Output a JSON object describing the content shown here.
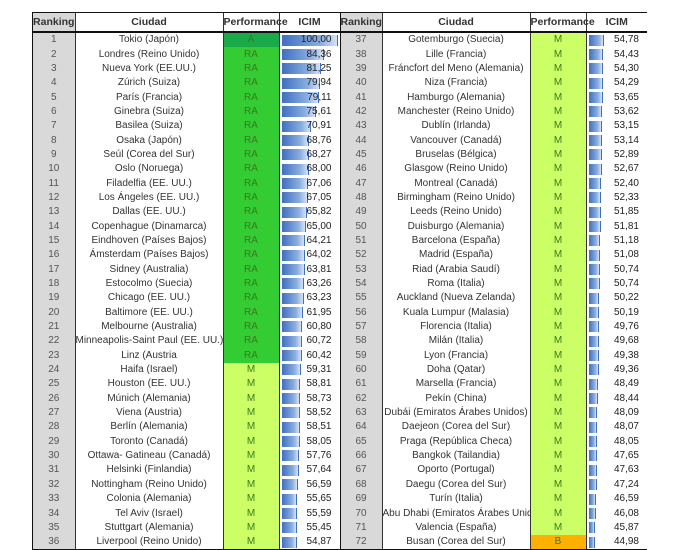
{
  "headers": {
    "ranking": "Ranking",
    "ciudad": "Ciudad",
    "performance": "Performance",
    "icim": "ICIM"
  },
  "colors": {
    "A": "#1aaa4a",
    "RA": "#33cc33",
    "M": "#ccff66",
    "B": "#ffb000",
    "bar": "#3f6fc0"
  },
  "left": [
    {
      "rank": "1",
      "city": "Tokio (Japón)",
      "perf": "A",
      "icim": "100,00"
    },
    {
      "rank": "2",
      "city": "Londres (Reino Unido)",
      "perf": "RA",
      "icim": "84,36"
    },
    {
      "rank": "3",
      "city": "Nueva York (EE.UU.)",
      "perf": "RA",
      "icim": "81,25"
    },
    {
      "rank": "4",
      "city": "Zúrich (Suiza)",
      "perf": "RA",
      "icim": "79,94"
    },
    {
      "rank": "5",
      "city": "París (Francia)",
      "perf": "RA",
      "icim": "79,11"
    },
    {
      "rank": "6",
      "city": "Ginebra (Suiza)",
      "perf": "RA",
      "icim": "75,61"
    },
    {
      "rank": "7",
      "city": "Basilea (Suiza)",
      "perf": "RA",
      "icim": "70,91"
    },
    {
      "rank": "8",
      "city": "Osaka (Japón)",
      "perf": "RA",
      "icim": "68,76"
    },
    {
      "rank": "9",
      "city": "Seúl (Corea del Sur)",
      "perf": "RA",
      "icim": "68,27"
    },
    {
      "rank": "10",
      "city": "Oslo (Noruega)",
      "perf": "RA",
      "icim": "68,00"
    },
    {
      "rank": "11",
      "city": "Filadelfia (EE. UU.)",
      "perf": "RA",
      "icim": "67,06"
    },
    {
      "rank": "12",
      "city": "Los Ángeles (EE. UU.)",
      "perf": "RA",
      "icim": "67,05"
    },
    {
      "rank": "13",
      "city": "Dallas (EE. UU.)",
      "perf": "RA",
      "icim": "65,82"
    },
    {
      "rank": "14",
      "city": "Copenhague (Dinamarca)",
      "perf": "RA",
      "icim": "65,00"
    },
    {
      "rank": "15",
      "city": "Eindhoven (Países Bajos)",
      "perf": "RA",
      "icim": "64,21"
    },
    {
      "rank": "16",
      "city": "Ámsterdam (Países Bajos)",
      "perf": "RA",
      "icim": "64,02"
    },
    {
      "rank": "17",
      "city": "Sidney (Australia)",
      "perf": "RA",
      "icim": "63,81"
    },
    {
      "rank": "18",
      "city": "Estocolmo (Suecia)",
      "perf": "RA",
      "icim": "63,26"
    },
    {
      "rank": "19",
      "city": "Chicago (EE. UU.)",
      "perf": "RA",
      "icim": "63,23"
    },
    {
      "rank": "20",
      "city": "Baltimore (EE. UU.)",
      "perf": "RA",
      "icim": "61,95"
    },
    {
      "rank": "21",
      "city": "Melbourne (Australia)",
      "perf": "RA",
      "icim": "60,80"
    },
    {
      "rank": "22",
      "city": "Minneapolis-Saint Paul (EE. UU.)",
      "perf": "RA",
      "icim": "60,72"
    },
    {
      "rank": "23",
      "city": "Linz (Austria",
      "perf": "RA",
      "icim": "60,42"
    },
    {
      "rank": "24",
      "city": "Haifa (Israel)",
      "perf": "M",
      "icim": "59,31"
    },
    {
      "rank": "25",
      "city": "Houston (EE. UU.)",
      "perf": "M",
      "icim": "58,81"
    },
    {
      "rank": "26",
      "city": "Múnich (Alemania)",
      "perf": "M",
      "icim": "58,73"
    },
    {
      "rank": "27",
      "city": "Viena (Austria)",
      "perf": "M",
      "icim": "58,52"
    },
    {
      "rank": "28",
      "city": "Berlín (Alemania)",
      "perf": "M",
      "icim": "58,51"
    },
    {
      "rank": "29",
      "city": "Toronto (Canadá)",
      "perf": "M",
      "icim": "58,05"
    },
    {
      "rank": "30",
      "city": "Ottawa- Gatineau (Canadá)",
      "perf": "M",
      "icim": "57,76"
    },
    {
      "rank": "31",
      "city": "Helsinki (Finlandia)",
      "perf": "M",
      "icim": "57,64"
    },
    {
      "rank": "32",
      "city": "Nottingham (Reino Unido)",
      "perf": "M",
      "icim": "56,59"
    },
    {
      "rank": "33",
      "city": "Colonia (Alemania)",
      "perf": "M",
      "icim": "55,65"
    },
    {
      "rank": "34",
      "city": "Tel Aviv (Israel)",
      "perf": "M",
      "icim": "55,59"
    },
    {
      "rank": "35",
      "city": "Stuttgart (Alemania)",
      "perf": "M",
      "icim": "55,45"
    },
    {
      "rank": "36",
      "city": "Liverpool (Reino Unido)",
      "perf": "M",
      "icim": "54,87"
    }
  ],
  "right": [
    {
      "rank": "37",
      "city": "Gotemburgo (Suecia)",
      "perf": "M",
      "icim": "54,78"
    },
    {
      "rank": "38",
      "city": "Lille (Francia)",
      "perf": "M",
      "icim": "54,43"
    },
    {
      "rank": "39",
      "city": "Fráncfort del Meno (Alemania)",
      "perf": "M",
      "icim": "54,30"
    },
    {
      "rank": "40",
      "city": "Niza (Francia)",
      "perf": "M",
      "icim": "54,29"
    },
    {
      "rank": "41",
      "city": "Hamburgo (Alemania)",
      "perf": "M",
      "icim": "53,65"
    },
    {
      "rank": "42",
      "city": "Manchester (Reino Unido)",
      "perf": "M",
      "icim": "53,62"
    },
    {
      "rank": "43",
      "city": "Dublín (Irlanda)",
      "perf": "M",
      "icim": "53,15"
    },
    {
      "rank": "44",
      "city": "Vancouver (Canadá)",
      "perf": "M",
      "icim": "53,14"
    },
    {
      "rank": "45",
      "city": "Bruselas (Bélgica)",
      "perf": "M",
      "icim": "52,89"
    },
    {
      "rank": "46",
      "city": "Glasgow (Reino Unido)",
      "perf": "M",
      "icim": "52,67"
    },
    {
      "rank": "47",
      "city": "Montreal (Canadá)",
      "perf": "M",
      "icim": "52,40"
    },
    {
      "rank": "48",
      "city": "Birmingham (Reino Unido)",
      "perf": "M",
      "icim": "52,33"
    },
    {
      "rank": "49",
      "city": "Leeds (Reino Unido)",
      "perf": "M",
      "icim": "51,85"
    },
    {
      "rank": "50",
      "city": "Duisburgo (Alemania)",
      "perf": "M",
      "icim": "51,81"
    },
    {
      "rank": "51",
      "city": "Barcelona (España)",
      "perf": "M",
      "icim": "51,18"
    },
    {
      "rank": "52",
      "city": "Madrid (España)",
      "perf": "M",
      "icim": "51,08"
    },
    {
      "rank": "53",
      "city": "Riad (Arabia Saudí)",
      "perf": "M",
      "icim": "50,74"
    },
    {
      "rank": "54",
      "city": "Roma (Italia)",
      "perf": "M",
      "icim": "50,74"
    },
    {
      "rank": "55",
      "city": "Auckland (Nueva Zelanda)",
      "perf": "M",
      "icim": "50,22"
    },
    {
      "rank": "56",
      "city": "Kuala Lumpur (Malasia)",
      "perf": "M",
      "icim": "50,19"
    },
    {
      "rank": "57",
      "city": "Florencia (Italia)",
      "perf": "M",
      "icim": "49,76"
    },
    {
      "rank": "58",
      "city": "Milán (Italia)",
      "perf": "M",
      "icim": "49,68"
    },
    {
      "rank": "59",
      "city": "Lyon (Francia)",
      "perf": "M",
      "icim": "49,38"
    },
    {
      "rank": "60",
      "city": "Doha (Qatar)",
      "perf": "M",
      "icim": "49,36"
    },
    {
      "rank": "61",
      "city": "Marsella (Francia)",
      "perf": "M",
      "icim": "48,49"
    },
    {
      "rank": "62",
      "city": "Pekín (China)",
      "perf": "M",
      "icim": "48,44"
    },
    {
      "rank": "63",
      "city": "Dubái (Emiratos Árabes Unidos)",
      "perf": "M",
      "icim": "48,09"
    },
    {
      "rank": "64",
      "city": "Daejeon (Corea del Sur)",
      "perf": "M",
      "icim": "48,07"
    },
    {
      "rank": "65",
      "city": "Praga (República Checa)",
      "perf": "M",
      "icim": "48,05"
    },
    {
      "rank": "66",
      "city": "Bangkok (Tailandia)",
      "perf": "M",
      "icim": "47,65"
    },
    {
      "rank": "67",
      "city": "Oporto (Portugal)",
      "perf": "M",
      "icim": "47,63"
    },
    {
      "rank": "68",
      "city": "Daegu (Corea del Sur)",
      "perf": "M",
      "icim": "47,24"
    },
    {
      "rank": "69",
      "city": "Turín (Italia)",
      "perf": "M",
      "icim": "46,59"
    },
    {
      "rank": "70",
      "city": "Abu Dhabi (Emiratos Árabes Unidos)",
      "perf": "M",
      "icim": "46,08"
    },
    {
      "rank": "71",
      "city": "Valencia (España)",
      "perf": "M",
      "icim": "45,87"
    },
    {
      "rank": "72",
      "city": "Busan (Corea del Sur)",
      "perf": "B",
      "icim": "44,98"
    }
  ]
}
